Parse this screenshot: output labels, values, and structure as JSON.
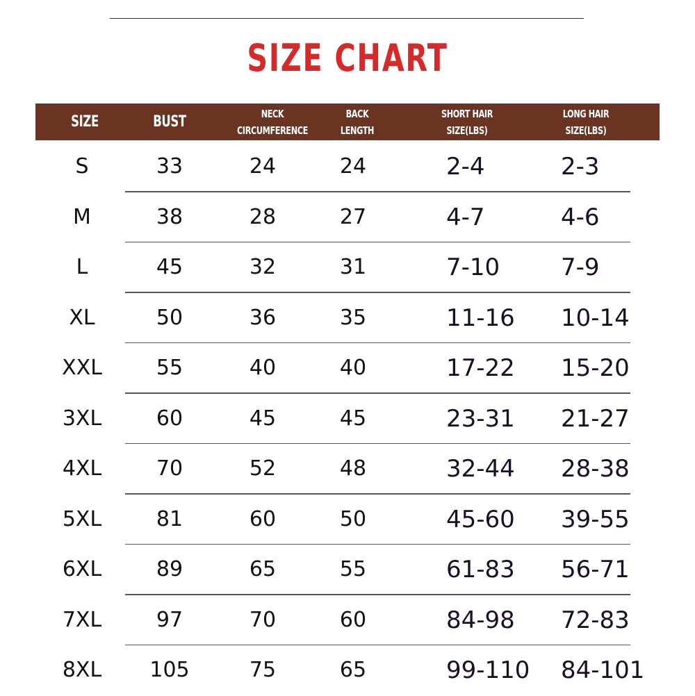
{
  "title": "SIZE CHART",
  "colors": {
    "title": "#d42a2a",
    "header_bg": "#6b3321",
    "header_text": "#ffffff"
  },
  "headers": [
    {
      "line1": "SIZE",
      "line2": ""
    },
    {
      "line1": "BUST",
      "line2": ""
    },
    {
      "line1": "NECK",
      "line2": "CIRCUMFERENCE"
    },
    {
      "line1": "BACK",
      "line2": "LENGTH"
    },
    {
      "line1": "SHORT HAIR",
      "line2": "SIZE(LBS)"
    },
    {
      "line1": "LONG HAIR",
      "line2": "SIZE(LBS)"
    }
  ],
  "rows": [
    [
      "S",
      "33",
      "24",
      "24",
      "2-4",
      "2-3"
    ],
    [
      "M",
      "38",
      "28",
      "27",
      "4-7",
      "4-6"
    ],
    [
      "L",
      "45",
      "32",
      "31",
      "7-10",
      "7-9"
    ],
    [
      "XL",
      "50",
      "36",
      "35",
      "11-16",
      "10-14"
    ],
    [
      "XXL",
      "55",
      "40",
      "40",
      "17-22",
      "15-20"
    ],
    [
      "3XL",
      "60",
      "45",
      "45",
      "23-31",
      "21-27"
    ],
    [
      "4XL",
      "70",
      "52",
      "48",
      "32-44",
      "28-38"
    ],
    [
      "5XL",
      "81",
      "60",
      "50",
      "45-60",
      "39-55"
    ],
    [
      "6XL",
      "89",
      "65",
      "55",
      "61-83",
      "56-71"
    ],
    [
      "7XL",
      "97",
      "70",
      "60",
      "84-98",
      "72-83"
    ],
    [
      "8XL",
      "105",
      "75",
      "65",
      "99-110",
      "84-101"
    ]
  ]
}
